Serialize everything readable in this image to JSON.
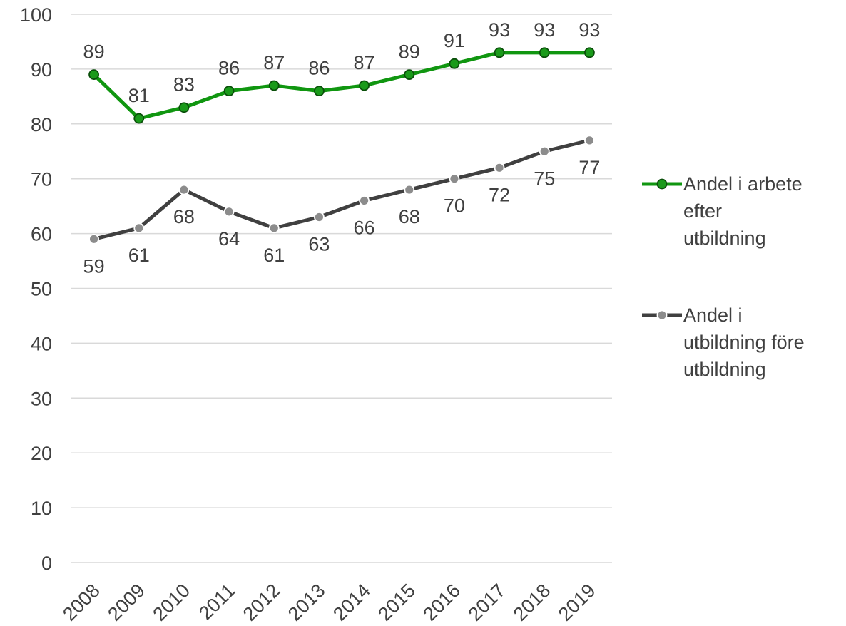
{
  "chart_data": {
    "type": "line",
    "x": [
      "2008",
      "2009",
      "2010",
      "2011",
      "2012",
      "2013",
      "2014",
      "2015",
      "2016",
      "2017",
      "2018",
      "2019"
    ],
    "series": [
      {
        "name": "Andel i arbete efter utbildning",
        "legend_lines": [
          "Andel i arbete",
          "efter",
          "utbildning"
        ],
        "color": "#109610",
        "marker_color": "#1a9a1a",
        "values": [
          89,
          81,
          83,
          86,
          87,
          86,
          87,
          89,
          91,
          93,
          93,
          93
        ],
        "label_position": "above"
      },
      {
        "name": "Andel i utbildning före utbildning",
        "legend_lines": [
          "Andel i",
          "utbildning före",
          "utbildning"
        ],
        "color": "#404040",
        "marker_color": "#8c8c8c",
        "values": [
          59,
          61,
          68,
          64,
          61,
          63,
          66,
          68,
          70,
          72,
          75,
          77
        ],
        "label_position": "below"
      }
    ],
    "ylim": [
      0,
      100
    ],
    "yticks": [
      "0",
      "10",
      "20",
      "30",
      "40",
      "50",
      "60",
      "70",
      "80",
      "90",
      "100"
    ],
    "grid": true,
    "legend_position": "right",
    "title": "",
    "xlabel": "",
    "ylabel": ""
  }
}
